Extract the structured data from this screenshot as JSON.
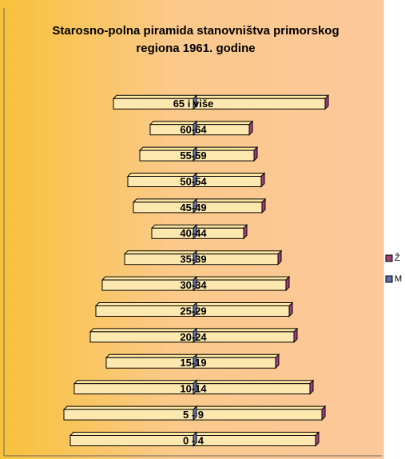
{
  "chart_data": {
    "type": "pyramid",
    "title": "Starosno-polna piramida stanovništva primorskog regiona 1961. godine",
    "categories": [
      "0 - 4",
      "5 - 9",
      "10-14",
      "15-19",
      "20-24",
      "25-29",
      "30-34",
      "35-39",
      "40-44",
      "45-49",
      "50-54",
      "55-59",
      "60-64",
      "65 i više"
    ],
    "series": [
      {
        "name": "Ž",
        "color": "#a0407a",
        "side": "right",
        "values": [
          153,
          161,
          146,
          103,
          126,
          120,
          116,
          106,
          63,
          86,
          85,
          76,
          70,
          165
        ]
      },
      {
        "name": "M",
        "color": "#6070a8",
        "side": "left",
        "values": [
          154,
          162,
          149,
          109,
          129,
          122,
          114,
          86,
          52,
          75,
          82,
          67,
          54,
          100
        ]
      }
    ],
    "legend": "right"
  }
}
